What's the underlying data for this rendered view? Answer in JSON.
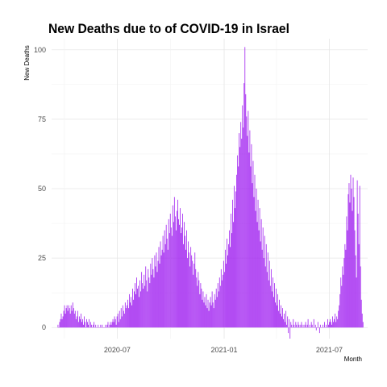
{
  "chart_data": {
    "type": "bar",
    "title": "New Deaths due to of COVID-19 in Israel",
    "xlabel": "Month",
    "ylabel": "New Deaths",
    "x_ticks": [
      "2020-07",
      "2021-01",
      "2021-07"
    ],
    "y_ticks": [
      0,
      25,
      50,
      75,
      100
    ],
    "xlim": [
      "2020-03-10",
      "2021-09-05"
    ],
    "ylim": [
      -4,
      104
    ],
    "grid": true,
    "bar_color": "#a020f0",
    "x_start": "2020-03-21",
    "values": [
      1,
      0,
      2,
      3,
      5,
      3,
      4,
      6,
      8,
      5,
      7,
      8,
      6,
      8,
      7,
      5,
      8,
      6,
      9,
      7,
      5,
      6,
      3,
      4,
      6,
      2,
      4,
      3,
      5,
      2,
      3,
      1,
      4,
      2,
      0,
      3,
      2,
      1,
      3,
      0,
      2,
      1,
      0,
      1,
      2,
      0,
      1,
      0,
      0,
      1,
      0,
      0,
      1,
      0,
      1,
      0,
      0,
      0,
      1,
      0,
      1,
      2,
      0,
      1,
      2,
      1,
      2,
      3,
      2,
      4,
      3,
      1,
      4,
      5,
      2,
      6,
      3,
      7,
      4,
      8,
      6,
      5,
      9,
      7,
      8,
      10,
      7,
      12,
      9,
      11,
      8,
      14,
      10,
      13,
      16,
      12,
      18,
      14,
      15,
      11,
      17,
      13,
      20,
      16,
      14,
      19,
      15,
      22,
      17,
      13,
      21,
      18,
      16,
      23,
      19,
      25,
      21,
      18,
      26,
      22,
      27,
      20,
      24,
      29,
      23,
      31,
      26,
      28,
      33,
      27,
      35,
      30,
      37,
      32,
      28,
      39,
      34,
      41,
      36,
      33,
      44,
      38,
      47,
      40,
      35,
      42,
      46,
      39,
      37,
      43,
      34,
      36,
      41,
      30,
      38,
      33,
      28,
      35,
      25,
      31,
      27,
      22,
      29,
      26,
      24,
      19,
      23,
      27,
      21,
      18,
      15,
      20,
      17,
      12,
      16,
      14,
      10,
      13,
      9,
      11,
      8,
      12,
      7,
      10,
      6,
      9,
      11,
      8,
      13,
      9,
      7,
      12,
      10,
      14,
      11,
      16,
      13,
      18,
      15,
      21,
      17,
      19,
      24,
      20,
      28,
      23,
      32,
      26,
      30,
      35,
      29,
      41,
      34,
      46,
      38,
      51,
      43,
      49,
      55,
      62,
      58,
      70,
      65,
      74,
      68,
      80,
      72,
      88,
      101,
      84,
      76,
      69,
      78,
      63,
      71,
      58,
      66,
      52,
      60,
      47,
      55,
      42,
      50,
      38,
      46,
      35,
      43,
      31,
      39,
      28,
      36,
      25,
      33,
      22,
      30,
      20,
      27,
      17,
      24,
      15,
      21,
      13,
      18,
      11,
      16,
      9,
      14,
      8,
      12,
      6,
      10,
      5,
      8,
      4,
      7,
      3,
      5,
      2,
      6,
      1,
      4,
      -2,
      3,
      -4,
      2,
      1,
      0,
      3,
      1,
      0,
      2,
      1,
      0,
      2,
      1,
      0,
      1,
      2,
      0,
      1,
      0,
      1,
      2,
      0,
      1,
      3,
      0,
      1,
      0,
      2,
      1,
      0,
      3,
      0,
      1,
      -1,
      0,
      2,
      0,
      -2,
      1,
      0,
      0,
      1,
      0,
      2,
      0,
      1,
      0,
      3,
      1,
      2,
      3,
      2,
      1,
      4,
      2,
      3,
      5,
      2,
      4,
      3,
      6,
      8,
      12,
      18,
      15,
      22,
      19,
      25,
      30,
      28,
      40,
      35,
      48,
      52,
      45,
      55,
      50,
      42,
      54,
      47,
      35,
      26,
      18,
      53,
      41,
      30,
      51,
      22,
      10,
      5,
      2
    ]
  }
}
